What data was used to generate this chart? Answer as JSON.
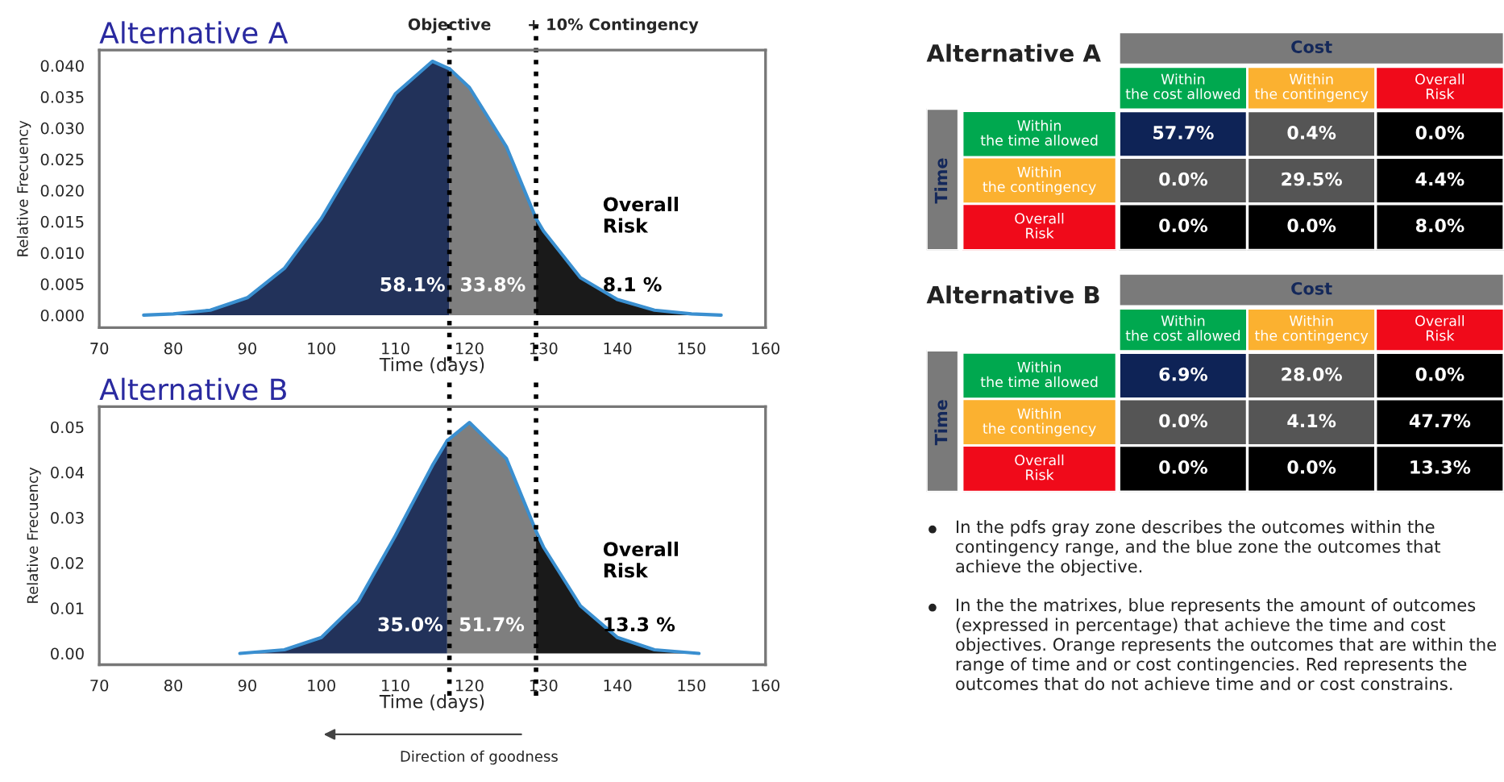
{
  "chart_data": [
    {
      "type": "area",
      "title": "Alternative A",
      "xlabel": "Time (days)",
      "ylabel": "Relative Frecuency",
      "xlim": [
        70,
        160
      ],
      "xticks": [
        70,
        80,
        90,
        100,
        110,
        120,
        130,
        140,
        150,
        160
      ],
      "ylim": [
        -0.002,
        0.0425
      ],
      "yticks": [
        {
          "value": 0,
          "label": "0.000"
        },
        {
          "value": 0.005,
          "label": "0.005"
        },
        {
          "value": 0.01,
          "label": "0.010"
        },
        {
          "value": 0.015,
          "label": "0.015"
        },
        {
          "value": 0.02,
          "label": "0.020"
        },
        {
          "value": 0.025,
          "label": "0.025"
        },
        {
          "value": 0.03,
          "label": "0.030"
        },
        {
          "value": 0.035,
          "label": "0.035"
        },
        {
          "value": 0.04,
          "label": "0.040"
        }
      ],
      "series": [
        {
          "color": "#22325a",
          "x": [
            76,
            80,
            85,
            90,
            95,
            100,
            105,
            110,
            115,
            117.3
          ],
          "values": [
            0,
            0.0002,
            0.0008,
            0.0028,
            0.0075,
            0.0155,
            0.0255,
            0.0355,
            0.0407,
            0.0395
          ]
        },
        {
          "color": "#7f7f7f",
          "x": [
            117.3,
            120,
            125,
            129
          ],
          "values": [
            0.0395,
            0.0365,
            0.027,
            0.0155
          ]
        },
        {
          "color": "#1a1a1a",
          "x": [
            129,
            130,
            135,
            140,
            145,
            150,
            154
          ],
          "values": [
            0.0155,
            0.0135,
            0.006,
            0.0025,
            0.0008,
            0.0002,
            0
          ]
        }
      ],
      "ref_lines": [
        {
          "axis": "x",
          "value": 117.3,
          "label": "Objective",
          "line_style": "dotted",
          "color": "#000000"
        },
        {
          "axis": "x",
          "value": 129,
          "label": "+ 10% Contingency",
          "line_style": "dotted",
          "color": "#000000"
        }
      ],
      "annotations": [
        "58.1%",
        "33.8%",
        "8.1 %",
        "Overall\nRisk"
      ],
      "grid": false,
      "legend": false
    },
    {
      "type": "area",
      "title": "Alternative B",
      "xlabel": "Time (days)",
      "ylabel": "Relative Frecuency",
      "xlim": [
        70,
        160
      ],
      "xticks": [
        70,
        80,
        90,
        100,
        110,
        120,
        130,
        140,
        150,
        160
      ],
      "ylim": [
        -0.0025,
        0.0545
      ],
      "yticks": [
        {
          "value": 0,
          "label": "0.00"
        },
        {
          "value": 0.01,
          "label": "0.01"
        },
        {
          "value": 0.02,
          "label": "0.02"
        },
        {
          "value": 0.03,
          "label": "0.03"
        },
        {
          "value": 0.04,
          "label": "0.04"
        },
        {
          "value": 0.05,
          "label": "0.05"
        }
      ],
      "series": [
        {
          "color": "#22325a",
          "x": [
            89,
            95,
            100,
            105,
            110,
            115,
            117
          ],
          "values": [
            0,
            0.0008,
            0.0035,
            0.0115,
            0.026,
            0.0415,
            0.047
          ]
        },
        {
          "color": "#7f7f7f",
          "x": [
            117,
            120,
            125,
            129
          ],
          "values": [
            0.047,
            0.051,
            0.043,
            0.027
          ]
        },
        {
          "color": "#1a1a1a",
          "x": [
            129,
            130,
            135,
            140,
            145,
            151
          ],
          "values": [
            0.027,
            0.0235,
            0.0105,
            0.0035,
            0.0008,
            0
          ]
        }
      ],
      "ref_lines": [
        {
          "axis": "x",
          "value": 117.3,
          "label": null,
          "line_style": "dotted",
          "color": "#000000"
        },
        {
          "axis": "x",
          "value": 129,
          "label": null,
          "line_style": "dotted",
          "color": "#000000"
        }
      ],
      "annotations": [
        "35.0%",
        "51.7%",
        "13.3 %",
        "Overall\nRisk",
        "Direction of goodness"
      ],
      "grid": false,
      "legend": false
    },
    {
      "type": "heatmap",
      "title": "Alternative A",
      "xlabel": "Cost",
      "ylabel": "Time",
      "categories": [
        "Within\nthe cost allowed",
        "Within\nthe contingency",
        "Overall\nRisk"
      ],
      "y_categories": [
        "Within\nthe time allowed",
        "Within\nthe contingency",
        "Overall\nRisk"
      ],
      "cells": [
        [
          57.7,
          0.4,
          0.0
        ],
        [
          0.0,
          29.5,
          4.4
        ],
        [
          0.0,
          0.0,
          8.0
        ]
      ],
      "cell_labels": [
        [
          "57.7%",
          "0.4%",
          "0.0%"
        ],
        [
          "0.0%",
          "29.5%",
          "4.4%"
        ],
        [
          "0.0%",
          "0.0%",
          "8.0%"
        ]
      ],
      "colors": [
        [
          "#0e2356",
          "#555555",
          "#000000"
        ],
        [
          "#555555",
          "#555555",
          "#000000"
        ],
        [
          "#000000",
          "#000000",
          "#000000"
        ]
      ]
    },
    {
      "type": "heatmap",
      "title": "Alternative B",
      "xlabel": "Cost",
      "ylabel": "Time",
      "categories": [
        "Within\nthe cost allowed",
        "Within\nthe contingency",
        "Overall\nRisk"
      ],
      "y_categories": [
        "Within\nthe time allowed",
        "Within\nthe contingency",
        "Overall\nRisk"
      ],
      "cells": [
        [
          6.9,
          28.0,
          0.0
        ],
        [
          0.0,
          4.1,
          47.7
        ],
        [
          0.0,
          0.0,
          13.3
        ]
      ],
      "cell_labels": [
        [
          "6.9%",
          "28.0%",
          "0.0%"
        ],
        [
          "0.0%",
          "4.1%",
          "47.7%"
        ],
        [
          "0.0%",
          "0.0%",
          "13.3%"
        ]
      ],
      "colors": [
        [
          "#0e2356",
          "#555555",
          "#000000"
        ],
        [
          "#555555",
          "#555555",
          "#000000"
        ],
        [
          "#000000",
          "#000000",
          "#000000"
        ]
      ],
      "annotations": [
        "In the pdfs gray zone describes the outcomes within the contingency range, and the blue zone the outcomes that achieve the objective.",
        "In the the matrixes, blue represents the amount of outcomes (expressed in percentage) that achieve the time and cost objectives. Orange represents the outcomes that are within the range of time and or cost contingencies. Red represents the outcomes that do not achieve time and or cost constrains."
      ]
    }
  ]
}
